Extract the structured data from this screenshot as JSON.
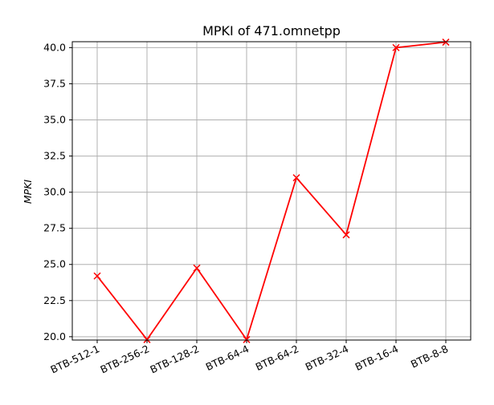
{
  "chart_data": {
    "type": "line",
    "title": "MPKI of 471.omnetpp",
    "xlabel": "",
    "ylabel": "MPKI",
    "categories": [
      "BTB-512-1",
      "BTB-256-2",
      "BTB-128-2",
      "BTB-64-4",
      "BTB-64-2",
      "BTB-32-4",
      "BTB-16-4",
      "BTB-8-8"
    ],
    "values": [
      24.2,
      19.8,
      24.75,
      19.8,
      31.0,
      27.05,
      40.0,
      40.38
    ],
    "ylim": [
      19.77,
      40.41
    ],
    "yticks": [
      20.0,
      22.5,
      25.0,
      27.5,
      30.0,
      32.5,
      35.0,
      37.5,
      40.0
    ],
    "ytick_labels": [
      "20.0",
      "22.5",
      "25.0",
      "27.5",
      "30.0",
      "32.5",
      "35.0",
      "37.5",
      "40.0"
    ],
    "grid": true,
    "marker": "x",
    "line_color": "#ff0000",
    "grid_color": "#b0b0b0"
  }
}
